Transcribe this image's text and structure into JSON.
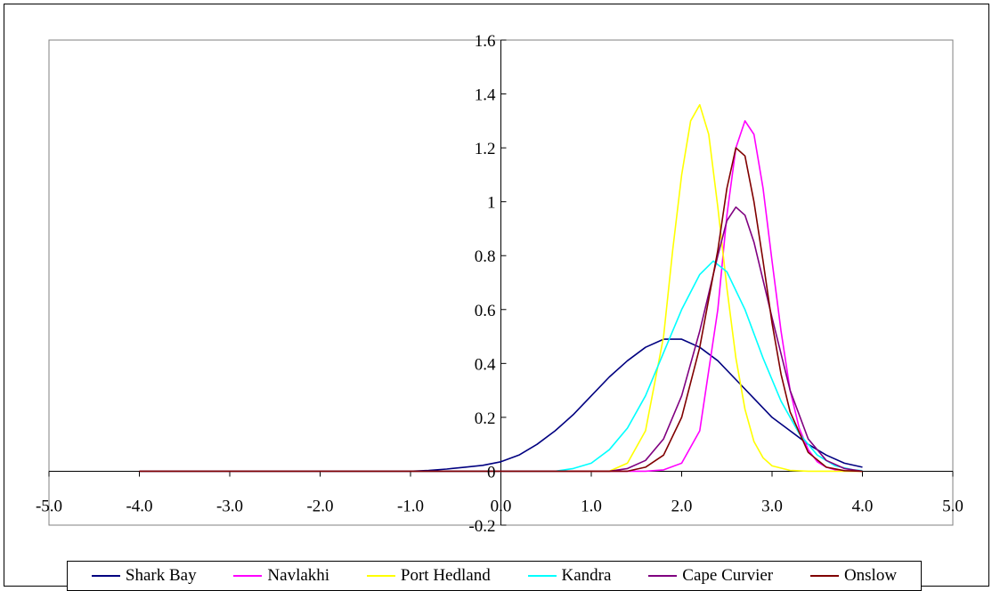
{
  "chart_data": {
    "type": "line",
    "title": "",
    "xlabel": "",
    "ylabel": "",
    "xlim": [
      -5.0,
      5.0
    ],
    "ylim": [
      -0.2,
      1.6
    ],
    "x_ticks": [
      "-5.0",
      "-4.0",
      "-3.0",
      "-2.0",
      "-1.0",
      "0.0",
      "1.0",
      "2.0",
      "3.0",
      "4.0",
      "5.0"
    ],
    "y_ticks": [
      "-0.2",
      "0",
      "0.2",
      "0.4",
      "0.6",
      "0.8",
      "1",
      "1.2",
      "1.4",
      "1.6"
    ],
    "grid": false,
    "legend_position": "bottom",
    "series": [
      {
        "name": "Shark Bay",
        "color": "#000080",
        "x": [
          -4.0,
          -1.0,
          -0.8,
          -0.6,
          -0.4,
          -0.2,
          0.0,
          0.2,
          0.4,
          0.6,
          0.8,
          1.0,
          1.2,
          1.4,
          1.6,
          1.8,
          2.0,
          2.2,
          2.4,
          2.6,
          2.8,
          3.0,
          3.2,
          3.4,
          3.6,
          3.8,
          4.0
        ],
        "y": [
          0.0,
          0.0,
          0.003,
          0.008,
          0.015,
          0.022,
          0.035,
          0.06,
          0.1,
          0.15,
          0.21,
          0.28,
          0.35,
          0.41,
          0.46,
          0.49,
          0.49,
          0.46,
          0.41,
          0.34,
          0.27,
          0.2,
          0.15,
          0.1,
          0.06,
          0.03,
          0.015
        ]
      },
      {
        "name": "Navlakhi",
        "color": "#FF00FF",
        "x": [
          -4.0,
          1.6,
          1.8,
          2.0,
          2.2,
          2.4,
          2.5,
          2.6,
          2.7,
          2.8,
          2.9,
          3.0,
          3.1,
          3.2,
          3.3,
          3.4,
          3.5,
          3.6,
          3.7,
          3.8,
          4.0
        ],
        "y": [
          0.0,
          0.0,
          0.005,
          0.03,
          0.15,
          0.6,
          0.95,
          1.2,
          1.3,
          1.25,
          1.05,
          0.78,
          0.52,
          0.3,
          0.16,
          0.08,
          0.035,
          0.015,
          0.005,
          0.001,
          0.0
        ]
      },
      {
        "name": "Port Hedland",
        "color": "#FFFF00",
        "x": [
          -4.0,
          1.2,
          1.4,
          1.6,
          1.8,
          1.9,
          2.0,
          2.1,
          2.2,
          2.3,
          2.4,
          2.5,
          2.6,
          2.7,
          2.8,
          2.9,
          3.0,
          3.2,
          3.4,
          4.0
        ],
        "y": [
          0.0,
          0.0,
          0.03,
          0.15,
          0.5,
          0.82,
          1.1,
          1.3,
          1.36,
          1.25,
          0.98,
          0.68,
          0.42,
          0.23,
          0.11,
          0.05,
          0.02,
          0.003,
          0.0,
          0.0
        ]
      },
      {
        "name": "Kandra",
        "color": "#00FFFF",
        "x": [
          -4.0,
          0.6,
          0.8,
          1.0,
          1.2,
          1.4,
          1.6,
          1.8,
          2.0,
          2.2,
          2.35,
          2.5,
          2.7,
          2.9,
          3.1,
          3.3,
          3.5,
          3.7,
          3.9,
          4.0
        ],
        "y": [
          0.0,
          0.0,
          0.01,
          0.03,
          0.08,
          0.16,
          0.28,
          0.44,
          0.6,
          0.73,
          0.78,
          0.74,
          0.6,
          0.42,
          0.26,
          0.14,
          0.06,
          0.02,
          0.005,
          0.002
        ]
      },
      {
        "name": "Cape Curvier",
        "color": "#800080",
        "x": [
          -4.0,
          1.2,
          1.4,
          1.6,
          1.8,
          2.0,
          2.2,
          2.4,
          2.5,
          2.6,
          2.7,
          2.8,
          3.0,
          3.2,
          3.4,
          3.6,
          3.8,
          4.0
        ],
        "y": [
          0.0,
          0.0,
          0.01,
          0.04,
          0.12,
          0.28,
          0.52,
          0.8,
          0.93,
          0.98,
          0.95,
          0.85,
          0.57,
          0.3,
          0.12,
          0.04,
          0.01,
          0.0
        ]
      },
      {
        "name": "Onslow",
        "color": "#800000",
        "x": [
          -4.0,
          1.4,
          1.6,
          1.8,
          2.0,
          2.2,
          2.4,
          2.5,
          2.6,
          2.7,
          2.8,
          2.9,
          3.0,
          3.1,
          3.2,
          3.4,
          3.6,
          3.8,
          4.0
        ],
        "y": [
          0.0,
          0.0,
          0.015,
          0.06,
          0.2,
          0.46,
          0.82,
          1.05,
          1.2,
          1.17,
          1.0,
          0.78,
          0.55,
          0.36,
          0.22,
          0.07,
          0.015,
          0.002,
          0.0
        ]
      }
    ]
  }
}
